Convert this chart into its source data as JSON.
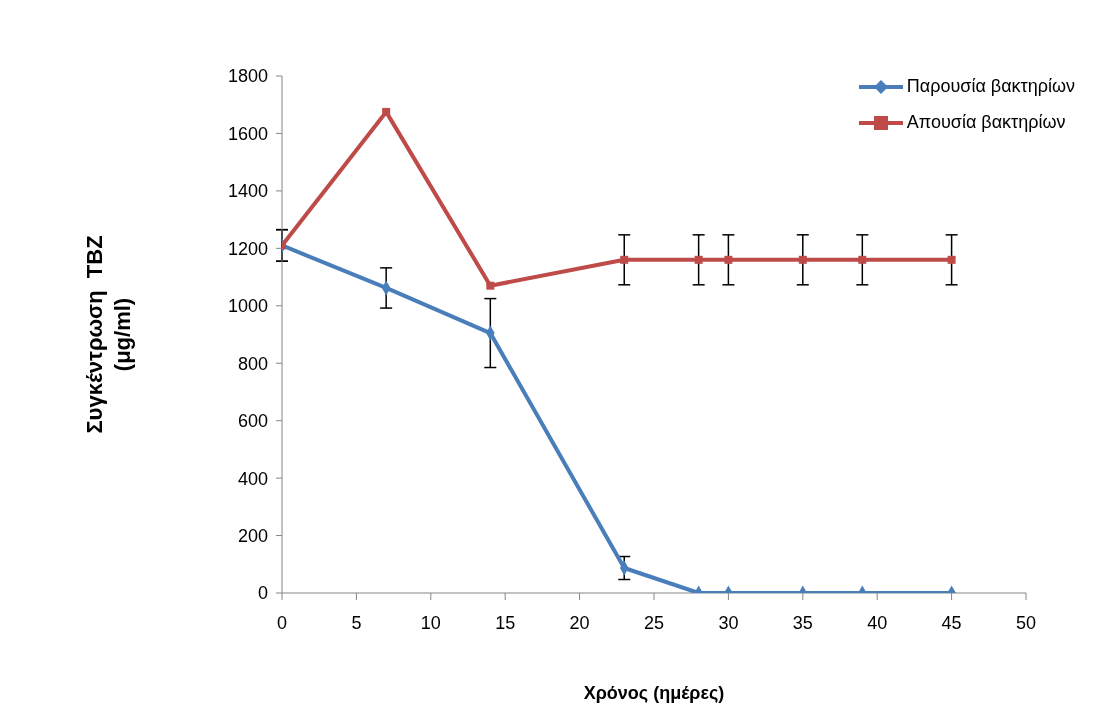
{
  "chart_data": {
    "type": "line",
    "xlabel": "Χρόνος (ημέρες)",
    "ylabel": "Συγκέντρωση  TBZ\n(μg/ml)",
    "x": [
      0,
      7,
      14,
      23,
      28,
      30,
      35,
      39,
      45
    ],
    "series": [
      {
        "name": "Παρουσία βακτηρίων",
        "color": "#4a7ebb",
        "marker": "diamond",
        "values": [
          1210,
          1062,
          905,
          87,
          0,
          0,
          0,
          0,
          0
        ],
        "errors": [
          55,
          70,
          120,
          40,
          null,
          null,
          null,
          null,
          null
        ]
      },
      {
        "name": "Απουσία βακτηρίων",
        "color": "#be4b48",
        "marker": "square",
        "values": [
          1210,
          1675,
          1070,
          1160,
          1160,
          1160,
          1160,
          1160,
          1160
        ],
        "errors": [
          55,
          null,
          null,
          87,
          87,
          87,
          87,
          87,
          87
        ]
      }
    ],
    "xlim": [
      0,
      50
    ],
    "xticks": [
      0,
      5,
      10,
      15,
      20,
      25,
      30,
      35,
      40,
      45,
      50
    ],
    "ylim": [
      0,
      1800
    ],
    "yticks": [
      0,
      200,
      400,
      600,
      800,
      1000,
      1200,
      1400,
      1600,
      1800
    ],
    "grid": false,
    "legend": "top right",
    "line_style": "solid"
  }
}
